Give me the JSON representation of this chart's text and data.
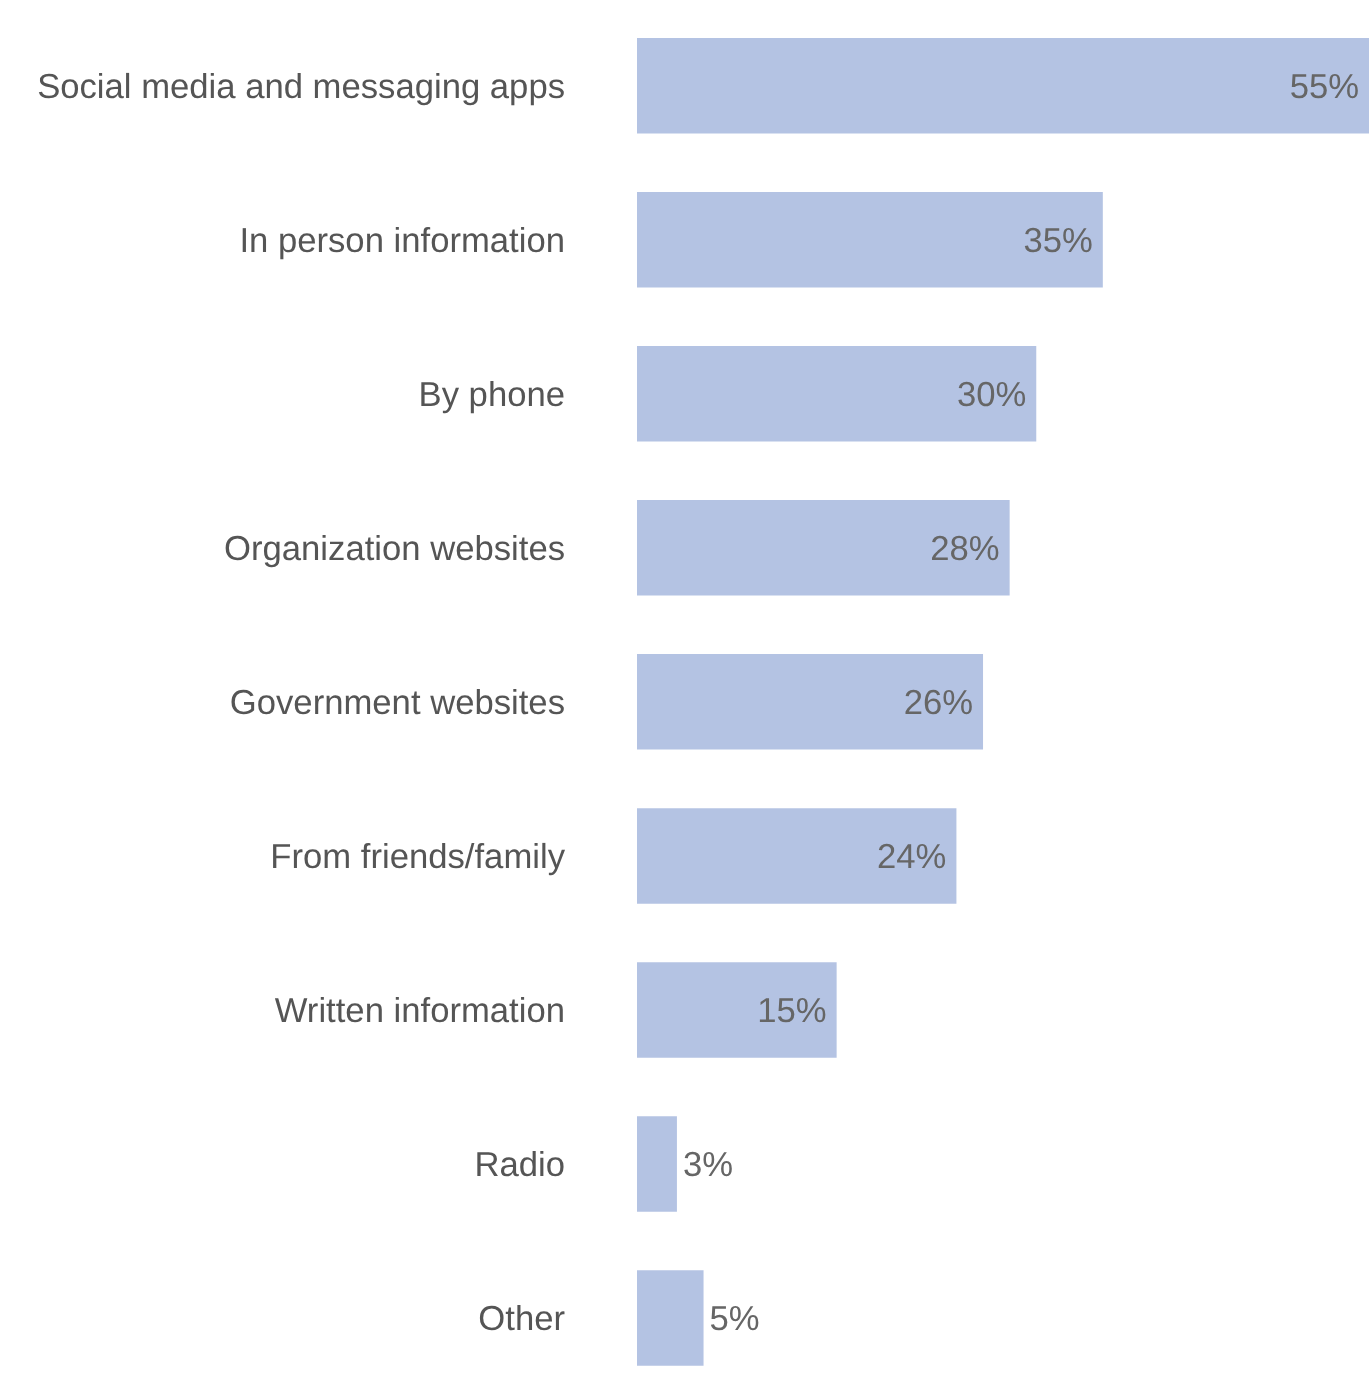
{
  "chart_data": {
    "type": "bar",
    "orientation": "horizontal",
    "categories": [
      "Social media and messaging apps",
      "In person information",
      "By phone",
      "Organization websites",
      "Government websites",
      "From friends/family",
      "Written information",
      "Radio",
      "Other"
    ],
    "values": [
      55,
      35,
      30,
      28,
      26,
      24,
      15,
      3,
      5
    ],
    "value_labels": [
      "55%",
      "35%",
      "30%",
      "28%",
      "26%",
      "24%",
      "15%",
      "3%",
      "5%"
    ],
    "color": "#b4c3e3",
    "xlim": [
      0,
      55
    ],
    "grid": false,
    "tick_labels": "y"
  }
}
